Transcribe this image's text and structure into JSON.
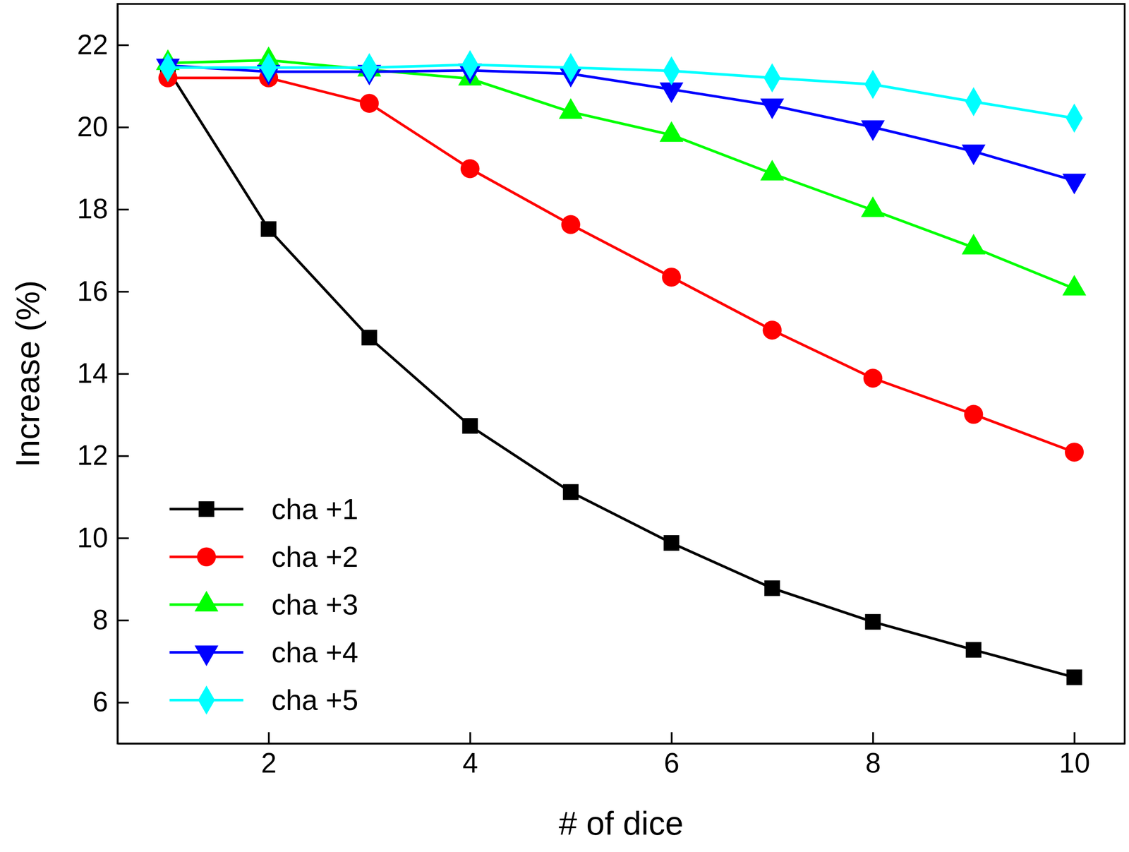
{
  "chart_data": {
    "type": "line",
    "x_label": "# of dice",
    "y_label": "Increase (%)",
    "x": [
      1,
      2,
      3,
      4,
      5,
      6,
      7,
      8,
      9,
      10
    ],
    "xlim": [
      0.5,
      10.5
    ],
    "xticks": [
      2,
      4,
      6,
      8,
      10
    ],
    "ylim": [
      5,
      23
    ],
    "yticks": [
      6,
      8,
      10,
      12,
      14,
      16,
      18,
      20,
      22
    ],
    "grid": false,
    "legend": "lower left",
    "series": [
      {
        "name": "cha +1",
        "color": "#000000",
        "marker": "square",
        "values": [
          21.4,
          17.52,
          14.88,
          12.73,
          11.12,
          9.88,
          8.78,
          7.96,
          7.28,
          6.61
        ]
      },
      {
        "name": "cha +2",
        "color": "#ff0000",
        "marker": "circle",
        "values": [
          21.2,
          21.2,
          20.58,
          18.99,
          17.63,
          16.35,
          15.06,
          13.89,
          13.01,
          12.09
        ]
      },
      {
        "name": "cha +3",
        "color": "#00ff00",
        "marker": "triangle-up",
        "values": [
          21.56,
          21.63,
          21.4,
          21.18,
          20.37,
          19.81,
          18.87,
          17.98,
          17.07,
          16.07
        ]
      },
      {
        "name": "cha +4",
        "color": "#0000ff",
        "marker": "triangle-down",
        "values": [
          21.5,
          21.35,
          21.35,
          21.38,
          21.3,
          20.92,
          20.53,
          20.0,
          19.41,
          18.7
        ]
      },
      {
        "name": "cha +5",
        "color": "#00ffff",
        "marker": "diamond",
        "values": [
          21.45,
          21.45,
          21.45,
          21.52,
          21.45,
          21.37,
          21.2,
          21.04,
          20.62,
          20.22
        ]
      }
    ]
  }
}
